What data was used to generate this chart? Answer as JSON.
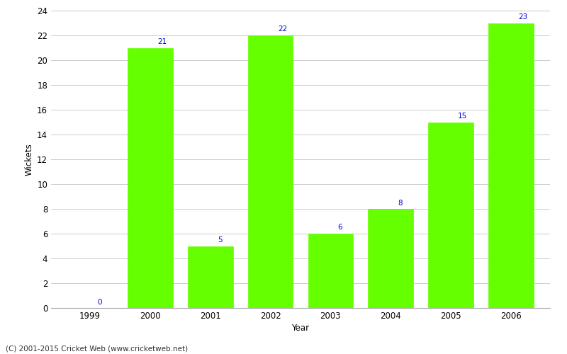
{
  "years": [
    1999,
    2000,
    2001,
    2002,
    2003,
    2004,
    2005,
    2006
  ],
  "wickets": [
    0,
    21,
    5,
    22,
    6,
    8,
    15,
    23
  ],
  "bar_color": "#66ff00",
  "bar_edge_color": "#66ff00",
  "label_color": "#0000cc",
  "xlabel": "Year",
  "ylabel": "Wickets",
  "ylim": [
    0,
    24
  ],
  "yticks": [
    0,
    2,
    4,
    6,
    8,
    10,
    12,
    14,
    16,
    18,
    20,
    22,
    24
  ],
  "footnote": "(C) 2001-2015 Cricket Web (www.cricketweb.net)",
  "background_color": "#ffffff",
  "grid_color": "#cccccc",
  "label_fontsize": 7.5,
  "axis_fontsize": 8.5,
  "footnote_fontsize": 7.5,
  "bar_width": 0.75
}
